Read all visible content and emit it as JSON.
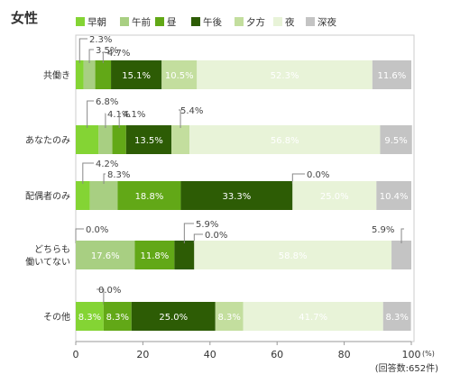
{
  "title": "女性",
  "colors": {
    "早朝": "#84d434",
    "午前": "#a8cf82",
    "昼": "#62a817",
    "午後": "#2d5c05",
    "夕方": "#c3de9e",
    "夜": "#e8f3d8",
    "深夜": "#c4c4c4"
  },
  "chart_data": {
    "type": "bar",
    "orientation": "horizontal",
    "stacked": true,
    "title": "女性",
    "categories": [
      "共働き",
      "あなたのみ",
      "配偶者のみ",
      "どちらも働いてない",
      "その他"
    ],
    "category_lines": [
      [
        "共働き"
      ],
      [
        "あなたのみ"
      ],
      [
        "配偶者のみ"
      ],
      [
        "どちらも",
        "働いてない"
      ],
      [
        "その他"
      ]
    ],
    "series": [
      {
        "name": "早朝",
        "values": [
          2.3,
          6.8,
          4.2,
          0.0,
          8.3
        ]
      },
      {
        "name": "午前",
        "values": [
          3.5,
          4.1,
          8.3,
          17.6,
          0.0
        ]
      },
      {
        "name": "昼",
        "values": [
          4.7,
          4.1,
          18.8,
          11.8,
          8.3
        ]
      },
      {
        "name": "午後",
        "values": [
          15.1,
          13.5,
          33.3,
          5.9,
          25.0
        ]
      },
      {
        "name": "夕方",
        "values": [
          10.5,
          5.4,
          0.0,
          0.0,
          8.3
        ]
      },
      {
        "name": "夜",
        "values": [
          52.3,
          56.8,
          25.0,
          58.8,
          41.7
        ]
      },
      {
        "name": "深夜",
        "values": [
          11.6,
          9.5,
          10.4,
          5.9,
          8.3
        ]
      }
    ],
    "xlim": [
      0,
      100
    ],
    "xticks": [
      0,
      20,
      40,
      60,
      80,
      100
    ],
    "x_unit": "(%)",
    "legend": "top",
    "grid": false,
    "note": "(回答数:652件)"
  }
}
